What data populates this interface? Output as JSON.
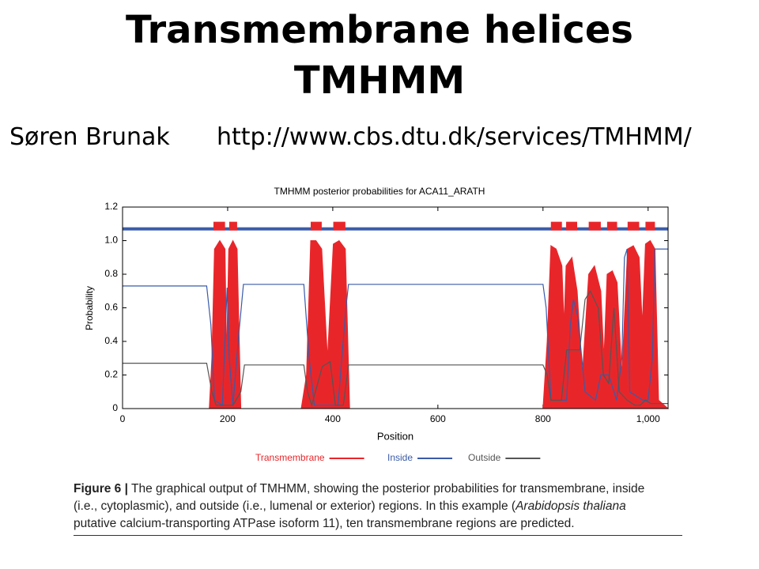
{
  "header": {
    "title_lines": [
      "Transmembrane helices",
      "TMHMM"
    ],
    "author": "Søren Brunak",
    "url": "http://www.cbs.dtu.dk/services/TMHMM/"
  },
  "chart_data": {
    "type": "line",
    "title": "TMHMM posterior probabilities for ACA11_ARATH",
    "x_label": "Position",
    "y_label": "Probability",
    "xlim": [
      0,
      1038
    ],
    "ylim": [
      0,
      1.2
    ],
    "xticks": [
      0,
      200,
      400,
      600,
      800,
      {
        "value": 1000,
        "label": "1,000"
      }
    ],
    "yticks": [
      0,
      0.2,
      0.4,
      0.6,
      0.8,
      {
        "value": 1,
        "label": "1.0"
      },
      1.2
    ],
    "series": [
      {
        "name": "Transmembrane",
        "color": "#e8262a",
        "fill": true,
        "x": [
          0,
          165,
          170,
          175,
          185,
          195,
          198,
          202,
          210,
          218,
          225,
          340,
          350,
          358,
          368,
          379,
          390,
          401,
          412,
          424,
          432,
          800,
          808,
          815,
          825,
          836,
          840,
          844,
          855,
          865,
          875,
          887,
          898,
          910,
          916,
          922,
          932,
          941,
          950,
          961,
          972,
          983,
          989,
          995,
          1004,
          1013,
          1020,
          1038
        ],
        "values": [
          0,
          0,
          0.3,
          0.95,
          1.0,
          0.95,
          0.3,
          0.95,
          1.0,
          0.95,
          0,
          0,
          0.2,
          1.0,
          1.0,
          0.95,
          0.3,
          0.98,
          1.0,
          0.95,
          0,
          0,
          0.4,
          0.97,
          0.95,
          0.85,
          0.5,
          0.85,
          0.9,
          0.7,
          0.2,
          0.8,
          0.85,
          0.7,
          0.3,
          0.8,
          0.82,
          0.75,
          0.2,
          0.95,
          0.97,
          0.9,
          0.5,
          0.98,
          1.0,
          0.95,
          0.05,
          0
        ]
      },
      {
        "name": "Inside",
        "color": "#3a5ba8",
        "fill": false,
        "x": [
          0,
          160,
          168,
          175,
          190,
          196,
          199,
          203,
          210,
          220,
          230,
          345,
          355,
          365,
          410,
          425,
          430,
          800,
          806,
          815,
          845,
          852,
          858,
          866,
          880,
          900,
          910,
          925,
          940,
          950,
          955,
          960,
          965,
          990,
          1000,
          1008,
          1013,
          1038
        ],
        "values": [
          0.73,
          0.73,
          0.5,
          0.05,
          0.02,
          0.5,
          0.72,
          0.3,
          0.02,
          0.4,
          0.74,
          0.74,
          0.3,
          0.02,
          0.02,
          0.6,
          0.74,
          0.74,
          0.6,
          0.05,
          0.05,
          0.5,
          0.65,
          0.55,
          0.1,
          0.05,
          0.2,
          0.2,
          0.05,
          0.3,
          0.9,
          0.95,
          0.1,
          0.05,
          0.05,
          0.3,
          0.95,
          0.95
        ]
      },
      {
        "name": "Outside",
        "color": "#555555",
        "fill": false,
        "x": [
          0,
          160,
          170,
          178,
          210,
          225,
          232,
          345,
          352,
          360,
          380,
          395,
          405,
          420,
          430,
          800,
          808,
          815,
          835,
          845,
          870,
          880,
          890,
          905,
          915,
          925,
          935,
          945,
          960,
          975,
          985,
          995,
          1005,
          1038
        ],
        "values": [
          0.27,
          0.27,
          0.1,
          0.02,
          0.02,
          0.1,
          0.26,
          0.26,
          0.1,
          0.02,
          0.25,
          0.28,
          0.02,
          0.02,
          0.26,
          0.26,
          0.2,
          0.05,
          0.05,
          0.35,
          0.35,
          0.65,
          0.7,
          0.6,
          0.2,
          0.15,
          0.6,
          0.1,
          0.05,
          0.02,
          0.02,
          0.05,
          0.03,
          0.03
        ]
      }
    ],
    "topology": {
      "level": 1.07,
      "segments": [
        [
          173,
          195
        ],
        [
          203,
          218
        ],
        [
          358,
          379
        ],
        [
          401,
          424
        ],
        [
          815,
          836
        ],
        [
          844,
          865
        ],
        [
          887,
          910
        ],
        [
          922,
          941
        ],
        [
          961,
          983
        ],
        [
          995,
          1013
        ]
      ]
    }
  },
  "caption": {
    "label": "Figure 6",
    "separator": "|",
    "line1": "The graphical output of TMHMM, showing the posterior probabilities for transmembrane, inside",
    "line2": "(i.e., cytoplasmic), and outside (i.e., lumenal or exterior) regions. In this example (",
    "species": "Arabidopsis thaliana",
    "line3": "putative calcium-transporting ATPase isoform 11), ten transmembrane regions are predicted."
  }
}
